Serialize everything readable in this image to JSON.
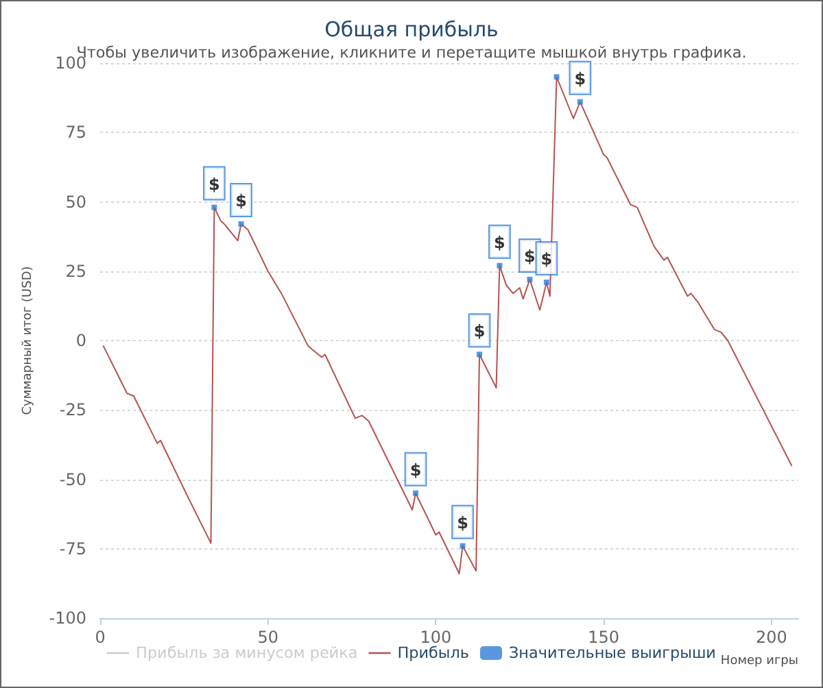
{
  "chart_data": {
    "type": "line",
    "title": "Общая прибыль",
    "subtitle": "Чтобы увеличить изображение, кликните и перетащите мышкой внутрь графика.",
    "xlabel": "Номер игры",
    "ylabel": "Суммарный итог (USD)",
    "series": [
      {
        "name": "Прибыль за минусом рейка",
        "color": "#cccccc"
      },
      {
        "name": "Прибыль",
        "color": "#b5524f",
        "x": [
          1,
          8,
          10,
          17,
          18,
          26,
          33,
          34,
          36,
          37,
          41,
          42,
          44,
          50,
          54,
          62,
          66,
          67,
          76,
          78,
          80,
          93,
          94,
          100,
          101,
          107,
          108,
          112,
          113,
          118,
          119,
          121,
          123,
          125,
          126,
          128,
          131,
          133,
          134,
          136,
          141,
          143,
          150,
          151,
          158,
          160,
          165,
          168,
          169,
          175,
          176,
          178,
          183,
          185,
          187,
          206
        ],
        "values": [
          -2,
          -19,
          -20,
          -37,
          -36,
          -56,
          -73,
          48,
          43,
          42,
          36,
          42,
          40,
          25,
          17,
          -2,
          -6,
          -5,
          -28,
          -27,
          -29,
          -61,
          -55,
          -70,
          -69,
          -84,
          -74,
          -83,
          -5,
          -17,
          27,
          20,
          17,
          19,
          15,
          22,
          11,
          21,
          16,
          95,
          80,
          86,
          67,
          66,
          49,
          48,
          34,
          29,
          30,
          16,
          17,
          14,
          4,
          3,
          0,
          -45
        ]
      },
      {
        "name": "Значительные выигрыши",
        "type": "scatter",
        "color": "#2f7ed8",
        "marker": "square",
        "x": [
          34,
          42,
          94,
          108,
          113,
          119,
          128,
          133,
          136,
          143
        ],
        "values": [
          48,
          42,
          -55,
          -74,
          -5,
          27,
          22,
          21,
          95,
          86
        ],
        "value_labels": [
          "$",
          "$",
          "$",
          "$",
          "$",
          "$",
          "$",
          "$",
          null,
          "$"
        ]
      }
    ],
    "xlim": [
      0,
      208
    ],
    "xticks": [
      0,
      50,
      100,
      150,
      200
    ],
    "ylim": [
      -100,
      100
    ],
    "yticks": [
      -100,
      -75,
      -50,
      -25,
      0,
      25,
      50,
      75,
      100
    ],
    "grid": "y",
    "legend": "bottom"
  }
}
